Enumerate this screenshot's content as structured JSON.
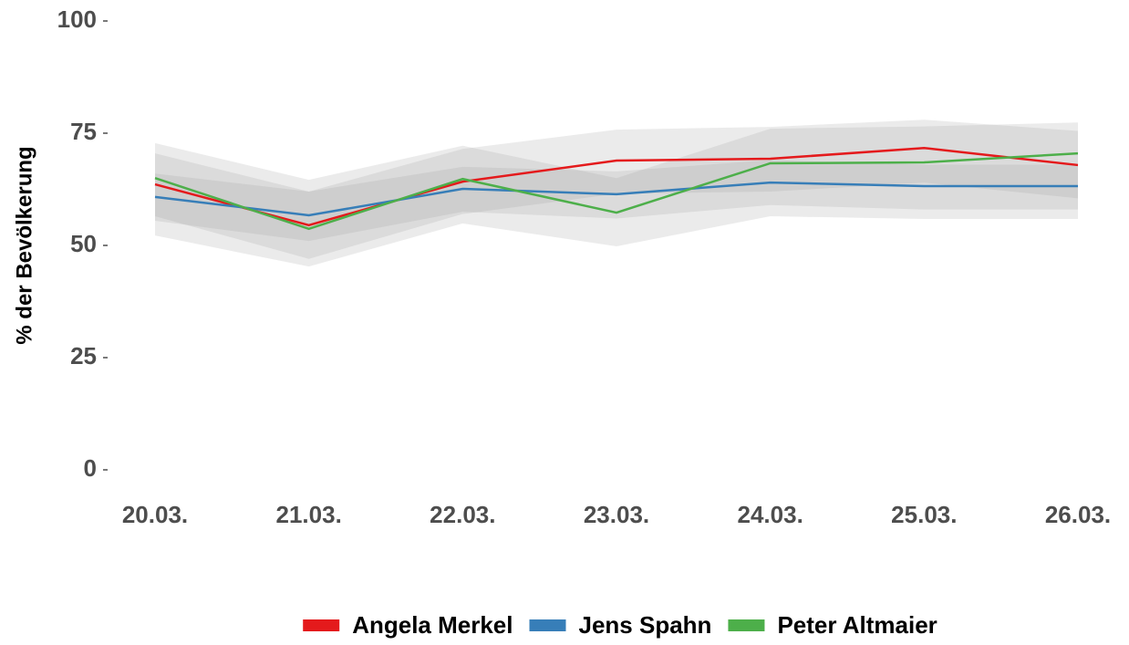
{
  "chart_data": {
    "type": "line",
    "ylabel": "% der Bevölkerung",
    "categories": [
      "20.03.",
      "21.03.",
      "22.03.",
      "23.03.",
      "24.03.",
      "25.03.",
      "26.03."
    ],
    "ylim": [
      0,
      100
    ],
    "yticks": [
      0,
      25,
      50,
      75,
      100
    ],
    "grid": false,
    "band_color": "#999999",
    "series": [
      {
        "name": "Angela Merkel",
        "color": "#e41a1c",
        "values": [
          63.6,
          54.5,
          64.2,
          68.9,
          69.3,
          71.7,
          67.9
        ],
        "lower": [
          56.5,
          47,
          57,
          61.5,
          62,
          64,
          60.5
        ],
        "upper": [
          70.5,
          62,
          71.5,
          75.8,
          76.4,
          78,
          75.5
        ]
      },
      {
        "name": "Jens Spahn",
        "color": "#377eb8",
        "values": [
          60.8,
          56.7,
          62.6,
          61.4,
          64.0,
          63.2,
          63.2
        ],
        "lower": [
          55.5,
          51,
          57.5,
          56,
          59,
          58,
          58
        ],
        "upper": [
          66,
          62,
          67.5,
          66.5,
          69,
          68,
          68
        ]
      },
      {
        "name": "Peter Altmaier",
        "color": "#4daf4a",
        "values": [
          65.0,
          53.7,
          64.8,
          57.3,
          68.3,
          68.5,
          70.5
        ],
        "lower": [
          52.2,
          45.3,
          54.9,
          49.8,
          56.5,
          55.9,
          55.9
        ],
        "upper": [
          72.8,
          64.6,
          72.2,
          65,
          76,
          76.5,
          77.4
        ]
      }
    ]
  }
}
